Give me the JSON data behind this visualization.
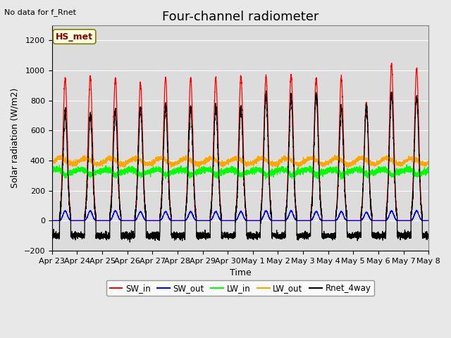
{
  "title": "Four-channel radiometer",
  "top_left_text": "No data for f_Rnet",
  "xlabel": "Time",
  "ylabel": "Solar radiation (W/m2)",
  "ylim": [
    -200,
    1300
  ],
  "yticks": [
    -200,
    0,
    200,
    400,
    600,
    800,
    1000,
    1200
  ],
  "fig_bg": "#e8e8e8",
  "axes_bg": "#dcdcdc",
  "station_label": "HS_met",
  "x_tick_labels": [
    "Apr 23",
    "Apr 24",
    "Apr 25",
    "Apr 26",
    "Apr 27",
    "Apr 28",
    "Apr 29",
    "Apr 30",
    "May 1",
    "May 2",
    "May 3",
    "May 4",
    "May 5",
    "May 6",
    "May 7",
    "May 8"
  ],
  "n_days": 15,
  "pts_per_day": 288,
  "sw_in_peaks": [
    950,
    960,
    950,
    910,
    950,
    950,
    950,
    960,
    960,
    970,
    950,
    950,
    780,
    1040,
    1010
  ],
  "sw_out_peaks": [
    65,
    65,
    65,
    60,
    60,
    60,
    60,
    60,
    65,
    65,
    60,
    60,
    55,
    65,
    65
  ],
  "lw_in_base": 330,
  "lw_out_base": 395,
  "rnet_peaks": [
    720,
    700,
    730,
    750,
    760,
    750,
    760,
    750,
    830,
    820,
    840,
    750,
    760,
    840,
    830
  ],
  "rnet_night": -100,
  "rise": 0.3,
  "set_": 0.75,
  "title_fontsize": 13,
  "label_fontsize": 9,
  "tick_fontsize": 8
}
